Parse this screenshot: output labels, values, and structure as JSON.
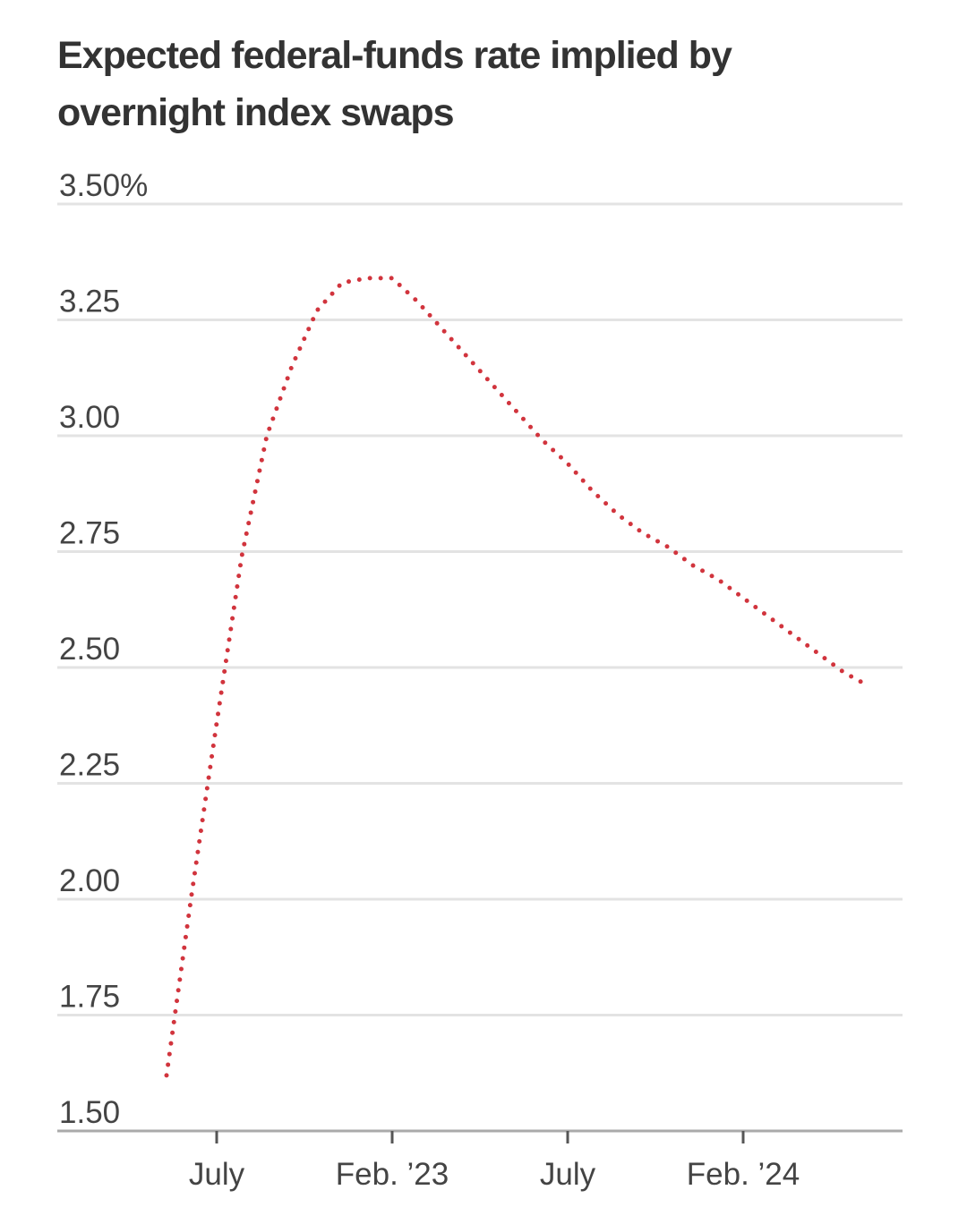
{
  "chart_data": {
    "type": "line",
    "title": "Expected federal-funds rate implied by overnight index swaps",
    "categories": [
      null,
      null,
      "July",
      null,
      null,
      null,
      null,
      null,
      null,
      "Feb. ’23",
      null,
      null,
      null,
      null,
      null,
      null,
      "July",
      null,
      null,
      null,
      null,
      null,
      null,
      "Feb. ’24",
      null,
      null,
      null,
      null,
      null
    ],
    "values": [
      1.62,
      2.01,
      2.38,
      2.74,
      3.0,
      3.15,
      3.27,
      3.33,
      3.34,
      3.34,
      3.29,
      3.23,
      3.17,
      3.11,
      3.05,
      2.99,
      2.94,
      2.88,
      2.83,
      2.79,
      2.76,
      2.72,
      2.69,
      2.65,
      2.61,
      2.57,
      2.53,
      2.49,
      2.46
    ],
    "color": "#d1343d",
    "ylim": [
      1.5,
      3.5
    ],
    "yticks": [
      {
        "value": 1.5,
        "label": "1.50"
      },
      1.75,
      {
        "value": 2,
        "label": "2.00"
      },
      2.25,
      {
        "value": 2.5,
        "label": "2.50"
      },
      2.75,
      {
        "value": 3,
        "label": "3.00"
      },
      3.25,
      {
        "value": 3.5,
        "label": "3.50%"
      }
    ],
    "grid": true
  }
}
